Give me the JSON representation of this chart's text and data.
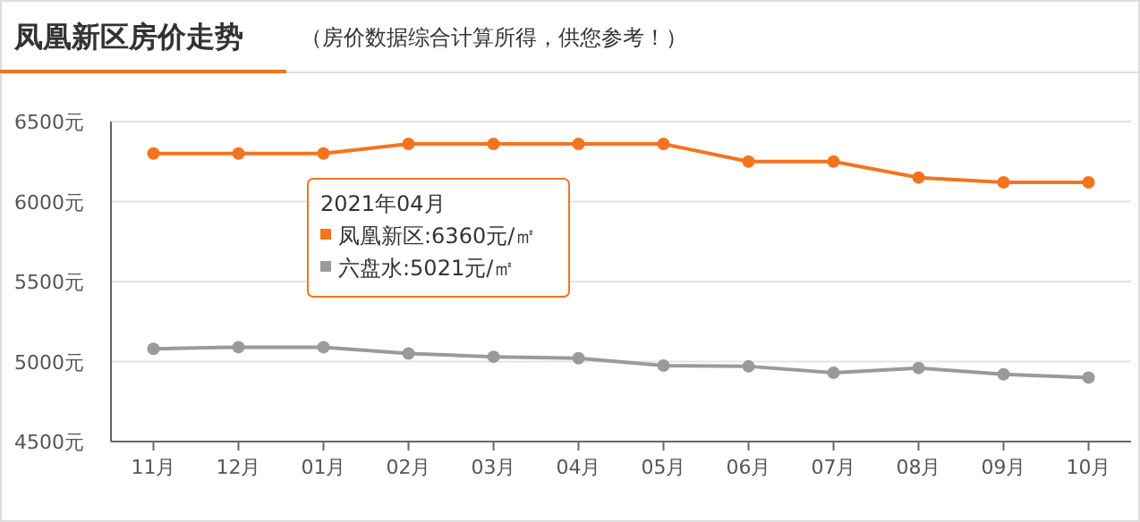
{
  "chart_data": {
    "type": "line",
    "title": "凤凰新区房价走势",
    "subtitle": "（房价数据综合计算所得，供您参考！）",
    "categories": [
      "11月",
      "12月",
      "01月",
      "02月",
      "03月",
      "04月",
      "05月",
      "06月",
      "07月",
      "08月",
      "09月",
      "10月"
    ],
    "series": [
      {
        "name": "凤凰新区",
        "color": "#f5731d",
        "values": [
          6300,
          6300,
          6300,
          6360,
          6360,
          6360,
          6360,
          6250,
          6250,
          6150,
          6120,
          6120
        ]
      },
      {
        "name": "六盘水",
        "color": "#9a9a9a",
        "values": [
          5080,
          5090,
          5090,
          5050,
          5030,
          5021,
          4975,
          4970,
          4930,
          4960,
          4920,
          4900
        ]
      }
    ],
    "ylim": [
      4500,
      6500
    ],
    "yticks": [
      {
        "value": 4500,
        "label": "4500元"
      },
      {
        "value": 5000,
        "label": "5000元"
      },
      {
        "value": 5500,
        "label": "5500元"
      },
      {
        "value": 6000,
        "label": "6000元"
      },
      {
        "value": 6500,
        "label": "6500元"
      }
    ],
    "grid": "y",
    "marker": "circle",
    "line_style": "solid",
    "legend": "top left",
    "annotations": [
      "2021年04月",
      ":6360元/㎡",
      ":5021元/㎡"
    ]
  }
}
